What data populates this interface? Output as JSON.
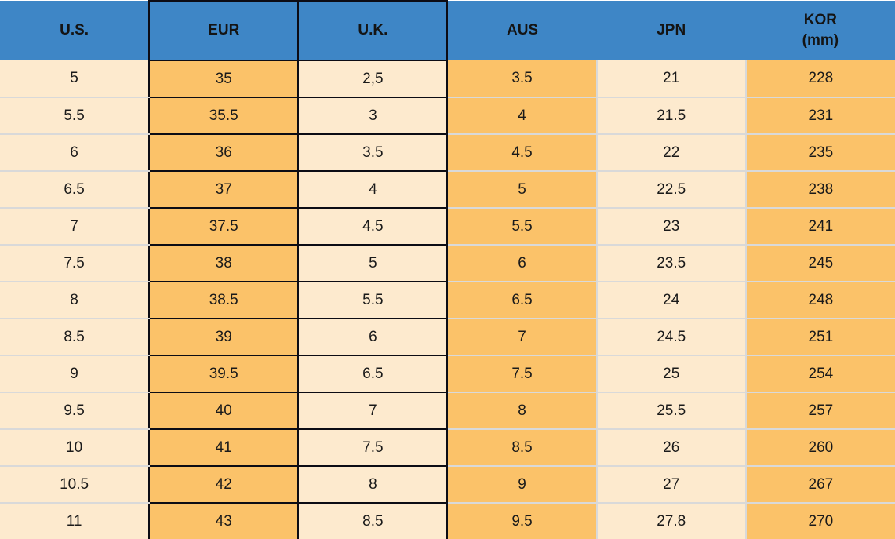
{
  "chart_data": {
    "type": "table",
    "columns": [
      "U.S.",
      "EUR",
      "U.K.",
      "AUS",
      "JPN",
      "KOR (mm)"
    ],
    "header_lines": [
      [
        "U.S."
      ],
      [
        "EUR"
      ],
      [
        "U.K."
      ],
      [
        "AUS"
      ],
      [
        "JPN"
      ],
      [
        "KOR",
        "(mm)"
      ]
    ],
    "column_keys": [
      "us",
      "eur",
      "uk",
      "aus",
      "jpn",
      "kor"
    ],
    "rows": [
      [
        "5",
        "35",
        "2,5",
        "3.5",
        "21",
        "228"
      ],
      [
        "5.5",
        "35.5",
        "3",
        "4",
        "21.5",
        "231"
      ],
      [
        "6",
        "36",
        "3.5",
        "4.5",
        "22",
        "235"
      ],
      [
        "6.5",
        "37",
        "4",
        "5",
        "22.5",
        "238"
      ],
      [
        "7",
        "37.5",
        "4.5",
        "5.5",
        "23",
        "241"
      ],
      [
        "7.5",
        "38",
        "5",
        "6",
        "23.5",
        "245"
      ],
      [
        "8",
        "38.5",
        "5.5",
        "6.5",
        "24",
        "248"
      ],
      [
        "8.5",
        "39",
        "6",
        "7",
        "24.5",
        "251"
      ],
      [
        "9",
        "39.5",
        "6.5",
        "7.5",
        "25",
        "254"
      ],
      [
        "9.5",
        "40",
        "7",
        "8",
        "25.5",
        "257"
      ],
      [
        "10",
        "41",
        "7.5",
        "8.5",
        "26",
        "260"
      ],
      [
        "10.5",
        "42",
        "8",
        "9",
        "27",
        "267"
      ],
      [
        "11",
        "43",
        "8.5",
        "9.5",
        "27.8",
        "270"
      ]
    ],
    "layout": {
      "header_bg": "#3E86C6",
      "column_fills": [
        "cream",
        "orange",
        "cream",
        "orange",
        "cream",
        "orange"
      ],
      "black_bordered_columns": [
        1,
        2
      ],
      "light_separator_columns": [
        4,
        5
      ],
      "fill_colors": {
        "cream": "#FDEACE",
        "orange": "#FBC269"
      },
      "border_color": "#0C0C14",
      "separator_color": "#D9D9D9",
      "grid": "mixed: black grid on EUR/U.K. columns, light gray row lines elsewhere",
      "legend": "none",
      "title": ""
    }
  }
}
